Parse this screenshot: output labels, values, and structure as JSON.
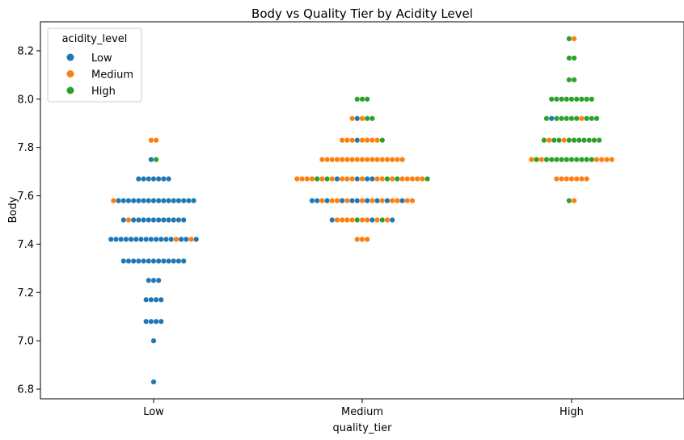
{
  "chart_data": {
    "type": "scatter",
    "subtype": "swarm",
    "title": "Body vs Quality Tier by Acidity Level",
    "xlabel": "quality_tier",
    "ylabel": "Body",
    "categories": [
      "Low",
      "Medium",
      "High"
    ],
    "ylim": [
      6.76,
      8.32
    ],
    "yticks": [
      6.8,
      7.0,
      7.2,
      7.4,
      7.6,
      7.8,
      8.0,
      8.2
    ],
    "ytick_labels": [
      "6.8",
      "7.0",
      "7.2",
      "7.4",
      "7.6",
      "7.8",
      "8.0",
      "8.2"
    ],
    "grid": false,
    "legend": {
      "title": "acidity_level",
      "position": "top-left"
    },
    "series": [
      {
        "name": "Low",
        "color": "#1f77b4"
      },
      {
        "name": "Medium",
        "color": "#ff7f0e"
      },
      {
        "name": "High",
        "color": "#2ca02c"
      }
    ],
    "points": [
      {
        "category": "Low",
        "y": 6.83,
        "colors": [
          "Low"
        ]
      },
      {
        "category": "Low",
        "y": 7.0,
        "colors": [
          "Low"
        ]
      },
      {
        "category": "Low",
        "y": 7.08,
        "colors": [
          "Low",
          "Low",
          "Low",
          "Low"
        ]
      },
      {
        "category": "Low",
        "y": 7.17,
        "colors": [
          "Low",
          "Low",
          "Low",
          "Low"
        ]
      },
      {
        "category": "Low",
        "y": 7.25,
        "colors": [
          "Low",
          "Low",
          "Low"
        ]
      },
      {
        "category": "Low",
        "y": 7.33,
        "colors": [
          "Low",
          "Low",
          "Low",
          "Low",
          "Low",
          "Low",
          "Low",
          "Low",
          "Low",
          "Low",
          "Low",
          "Low",
          "Low"
        ]
      },
      {
        "category": "Low",
        "y": 7.42,
        "colors": [
          "Low",
          "Low",
          "Low",
          "Low",
          "Low",
          "Low",
          "Low",
          "Low",
          "Low",
          "Low",
          "Low",
          "Low",
          "Low",
          "Medium",
          "Low",
          "Low",
          "Medium",
          "Low"
        ]
      },
      {
        "category": "Low",
        "y": 7.5,
        "colors": [
          "Low",
          "Medium",
          "Low",
          "Low",
          "Low",
          "Low",
          "Low",
          "Low",
          "Low",
          "Low",
          "Low",
          "Low",
          "Low"
        ]
      },
      {
        "category": "Low",
        "y": 7.58,
        "colors": [
          "Medium",
          "Low",
          "Low",
          "Low",
          "Low",
          "Low",
          "Low",
          "Low",
          "Low",
          "Low",
          "Low",
          "Low",
          "Low",
          "Low",
          "Low",
          "Low",
          "Low"
        ]
      },
      {
        "category": "Low",
        "y": 7.67,
        "colors": [
          "Low",
          "Low",
          "Low",
          "Low",
          "Low",
          "Low",
          "Low"
        ]
      },
      {
        "category": "Low",
        "y": 7.75,
        "colors": [
          "Low",
          "High"
        ]
      },
      {
        "category": "Low",
        "y": 7.83,
        "colors": [
          "Medium",
          "Medium"
        ]
      },
      {
        "category": "Medium",
        "y": 7.42,
        "colors": [
          "Medium",
          "Medium",
          "Medium"
        ]
      },
      {
        "category": "Medium",
        "y": 7.5,
        "colors": [
          "Low",
          "Medium",
          "Medium",
          "Medium",
          "Medium",
          "High",
          "Medium",
          "Medium",
          "Low",
          "Medium",
          "High",
          "Medium",
          "Low"
        ]
      },
      {
        "category": "Medium",
        "y": 7.58,
        "colors": [
          "Low",
          "Low",
          "Medium",
          "Low",
          "Medium",
          "Medium",
          "Low",
          "Medium",
          "Low",
          "Low",
          "Medium",
          "Low",
          "Medium",
          "Low",
          "Medium",
          "Low",
          "Medium",
          "Medium",
          "Low",
          "Medium",
          "Medium"
        ]
      },
      {
        "category": "Medium",
        "y": 7.67,
        "colors": [
          "Medium",
          "Medium",
          "Medium",
          "Medium",
          "High",
          "Medium",
          "High",
          "Medium",
          "Low",
          "Medium",
          "Medium",
          "Medium",
          "Low",
          "Medium",
          "Low",
          "Low",
          "Medium",
          "Medium",
          "High",
          "Medium",
          "High",
          "Medium",
          "Medium",
          "Medium",
          "Medium",
          "Medium",
          "High"
        ]
      },
      {
        "category": "Medium",
        "y": 7.75,
        "colors": [
          "Medium",
          "Medium",
          "Medium",
          "Medium",
          "Medium",
          "Medium",
          "Medium",
          "Medium",
          "Medium",
          "Medium",
          "Medium",
          "Medium",
          "Medium",
          "Medium",
          "Medium",
          "Medium",
          "Medium"
        ]
      },
      {
        "category": "Medium",
        "y": 7.83,
        "colors": [
          "Medium",
          "Medium",
          "Medium",
          "Low",
          "Medium",
          "Medium",
          "Medium",
          "Medium",
          "High"
        ]
      },
      {
        "category": "Medium",
        "y": 7.92,
        "colors": [
          "Medium",
          "Low",
          "Medium",
          "High",
          "High"
        ]
      },
      {
        "category": "Medium",
        "y": 8.0,
        "colors": [
          "High",
          "High",
          "High"
        ]
      },
      {
        "category": "High",
        "y": 7.58,
        "colors": [
          "High",
          "Medium"
        ]
      },
      {
        "category": "High",
        "y": 7.67,
        "colors": [
          "Medium",
          "Medium",
          "Medium",
          "Medium",
          "Medium",
          "Medium",
          "Medium"
        ]
      },
      {
        "category": "High",
        "y": 7.75,
        "colors": [
          "Medium",
          "High",
          "Medium",
          "High",
          "High",
          "High",
          "High",
          "High",
          "High",
          "High",
          "High",
          "High",
          "High",
          "Medium",
          "Medium",
          "Medium",
          "Medium"
        ]
      },
      {
        "category": "High",
        "y": 7.83,
        "colors": [
          "High",
          "Medium",
          "High",
          "High",
          "Medium",
          "High",
          "High",
          "High",
          "High",
          "High",
          "High",
          "High"
        ]
      },
      {
        "category": "High",
        "y": 7.92,
        "colors": [
          "High",
          "Low",
          "High",
          "High",
          "High",
          "High",
          "High",
          "Medium",
          "High",
          "High",
          "High"
        ]
      },
      {
        "category": "High",
        "y": 8.0,
        "colors": [
          "High",
          "High",
          "High",
          "High",
          "High",
          "High",
          "High",
          "High",
          "High"
        ]
      },
      {
        "category": "High",
        "y": 8.08,
        "colors": [
          "High",
          "High"
        ]
      },
      {
        "category": "High",
        "y": 8.17,
        "colors": [
          "High",
          "High"
        ]
      },
      {
        "category": "High",
        "y": 8.25,
        "colors": [
          "High",
          "Medium"
        ]
      }
    ]
  }
}
